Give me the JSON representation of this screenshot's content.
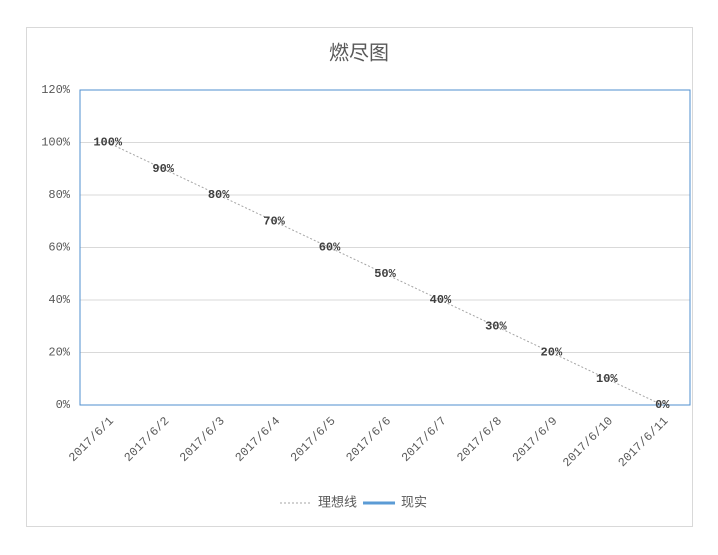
{
  "chart_data": {
    "type": "line",
    "title": "燃尽图",
    "categories": [
      "2017/6/1",
      "2017/6/2",
      "2017/6/3",
      "2017/6/4",
      "2017/6/5",
      "2017/6/6",
      "2017/6/7",
      "2017/6/8",
      "2017/6/9",
      "2017/6/10",
      "2017/6/11"
    ],
    "series": [
      {
        "name": "理想线",
        "color": "#a5a5a5",
        "dash": true,
        "values": [
          100,
          90,
          80,
          70,
          60,
          50,
          40,
          30,
          20,
          10,
          0
        ],
        "value_labels": [
          "100%",
          "90%",
          "80%",
          "70%",
          "60%",
          "50%",
          "40%",
          "30%",
          "20%",
          "10%",
          "0%"
        ]
      },
      {
        "name": "现实",
        "color": "#5b9bd5",
        "values": [
          null,
          null,
          null,
          null,
          null,
          null,
          null,
          null,
          null,
          null,
          null
        ]
      }
    ],
    "ylim": [
      0,
      120
    ],
    "yticks": [
      {
        "value": 0,
        "label": "0%"
      },
      {
        "value": 20,
        "label": "20%"
      },
      {
        "value": 40,
        "label": "40%"
      },
      {
        "value": 60,
        "label": "60%"
      },
      {
        "value": 80,
        "label": "80%"
      },
      {
        "value": 100,
        "label": "100%"
      },
      {
        "value": 120,
        "label": "120%"
      }
    ],
    "grid": true,
    "legend": "bottom"
  }
}
